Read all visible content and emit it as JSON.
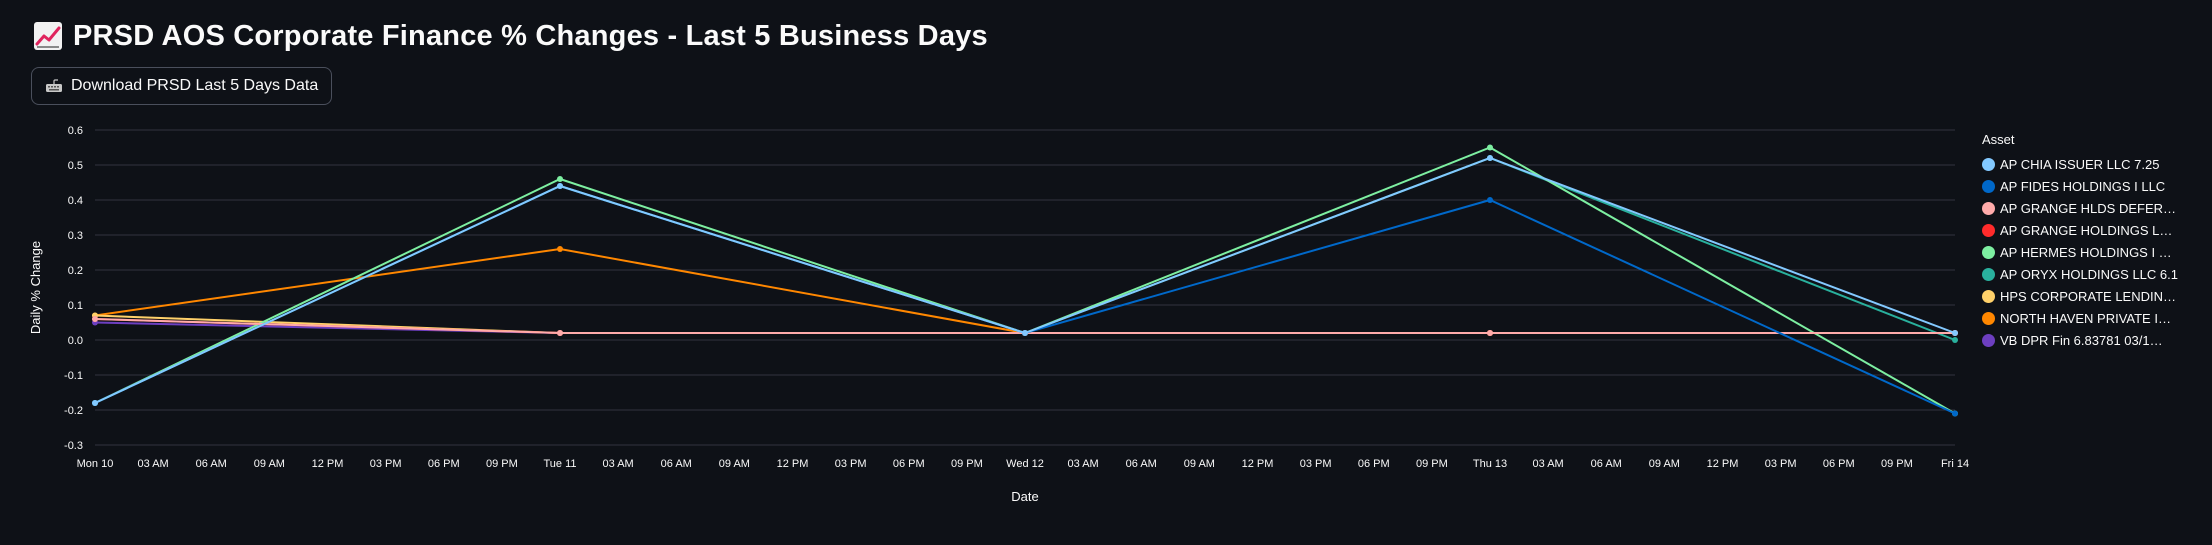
{
  "header": {
    "title": "PRSD AOS Corporate Finance % Changes - Last 5 Business Days",
    "title_icon": "chart-increasing-icon"
  },
  "download": {
    "label": "Download PRSD Last 5 Days Data",
    "icon": "keyboard-icon"
  },
  "colors": {
    "background": "#0e1117",
    "grid": "#31333f",
    "text": "#fafafa"
  },
  "chart_data": {
    "type": "line",
    "xlabel": "Date",
    "ylabel": "Daily % Change",
    "ylim": [
      -0.3,
      0.6
    ],
    "y_ticks": [
      0.6,
      0.5,
      0.4,
      0.3,
      0.2,
      0.1,
      0.0,
      -0.1,
      -0.2,
      -0.3
    ],
    "x_tick_labels": [
      "Mon 10",
      "03 AM",
      "06 AM",
      "09 AM",
      "12 PM",
      "03 PM",
      "06 PM",
      "09 PM",
      "Tue 11",
      "03 AM",
      "06 AM",
      "09 AM",
      "12 PM",
      "03 PM",
      "06 PM",
      "09 PM",
      "Wed 12",
      "03 AM",
      "06 AM",
      "09 AM",
      "12 PM",
      "03 PM",
      "06 PM",
      "09 PM",
      "Thu 13",
      "03 AM",
      "06 AM",
      "09 AM",
      "12 PM",
      "03 PM",
      "06 PM",
      "09 PM",
      "Fri 14"
    ],
    "x_dates": [
      "Mon 10",
      "Tue 11",
      "Wed 12",
      "Thu 13",
      "Fri 14"
    ],
    "grid": true,
    "legend_title": "Asset",
    "legend_position": "right",
    "series": [
      {
        "name": "AP CHIA ISSUER LLC 7.25",
        "color": "#83c9ff",
        "values": [
          -0.18,
          0.44,
          0.02,
          0.52,
          0.02
        ]
      },
      {
        "name": "AP FIDES HOLDINGS I LLC",
        "color": "#0068c9",
        "values": [
          -0.18,
          0.44,
          0.02,
          0.4,
          -0.21
        ]
      },
      {
        "name": "AP GRANGE HLDS DEFER…",
        "color": "#ffabab",
        "values": [
          0.06,
          0.02,
          0.02,
          0.02,
          0.02
        ]
      },
      {
        "name": "AP GRANGE HOLDINGS L…",
        "color": "#ff2b2b",
        "values": [
          0.06,
          0.02,
          0.02,
          0.02,
          0.02
        ]
      },
      {
        "name": "AP HERMES HOLDINGS I …",
        "color": "#7defa1",
        "values": [
          -0.18,
          0.46,
          0.02,
          0.55,
          -0.21
        ]
      },
      {
        "name": "AP ORYX HOLDINGS LLC 6.1",
        "color": "#29b09d",
        "values": [
          -0.18,
          0.44,
          0.02,
          0.52,
          0.0
        ]
      },
      {
        "name": "HPS CORPORATE LENDIN…",
        "color": "#ffd16a",
        "values": [
          0.07,
          0.02,
          0.02,
          0.02,
          0.02
        ]
      },
      {
        "name": "NORTH HAVEN PRIVATE I…",
        "color": "#ff8700",
        "values": [
          0.07,
          0.26,
          0.02,
          0.02,
          0.02
        ]
      },
      {
        "name": "VB DPR Fin 6.83781 03/1…",
        "color": "#6d3fc0",
        "values": [
          0.05,
          0.02,
          0.02,
          0.02,
          0.02
        ]
      }
    ],
    "extra_series_colors": [
      "#ff8700",
      "#d45087"
    ]
  }
}
